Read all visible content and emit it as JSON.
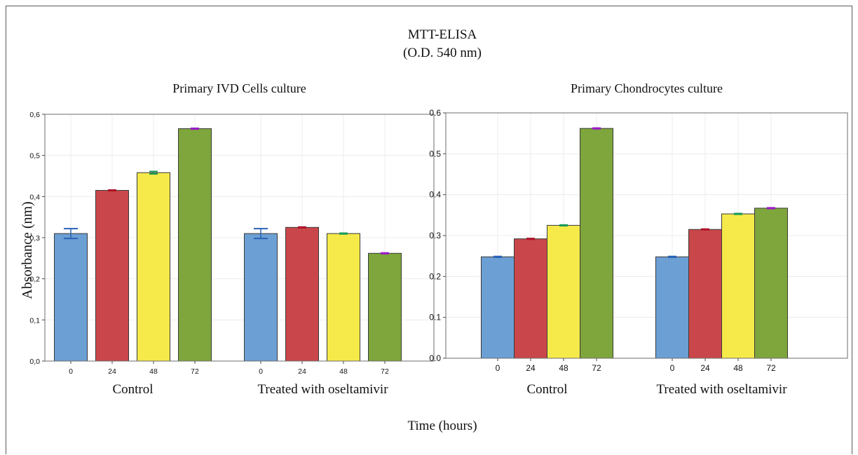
{
  "figure": {
    "title_line1": "MTT-ELISA",
    "title_line2": "(O.D. 540 nm)",
    "ylabel": "Absorbance (nm)",
    "xlabel": "Time (hours)"
  },
  "chart_data": [
    {
      "type": "bar",
      "title": "Primary IVD Cells culture",
      "ylabel": "Absorbance (nm)",
      "xlabel": "Time (hours)",
      "ylim": [
        0,
        0.6
      ],
      "yticks": [
        0.0,
        0.1,
        0.2,
        0.3,
        0.4,
        0.5,
        0.6
      ],
      "ytick_labels": [
        "0,0",
        "0,1",
        "0,2",
        "0,3",
        "0,4",
        "0,5",
        "0,6"
      ],
      "grid": true,
      "groups": [
        {
          "label": "Control",
          "categories": [
            "0",
            "24",
            "48",
            "72"
          ],
          "values": [
            0.31,
            0.415,
            0.458,
            0.565
          ],
          "errors": [
            0.012,
            0.001,
            0.003,
            0.001
          ]
        },
        {
          "label": "Treated with oseltamivir",
          "categories": [
            "0",
            "24",
            "48",
            "72"
          ],
          "values": [
            0.31,
            0.325,
            0.31,
            0.262
          ],
          "errors": [
            0.012,
            0.001,
            0.001,
            0.001
          ]
        }
      ]
    },
    {
      "type": "bar",
      "title": "Primary Chondrocytes culture",
      "xlabel": "Time (hours)",
      "ylim": [
        0,
        0.6
      ],
      "yticks": [
        0.0,
        0.1,
        0.2,
        0.3,
        0.4,
        0.5,
        0.6
      ],
      "ytick_labels": [
        "0.0",
        "0.1",
        "0.2",
        "0.3",
        "0.4",
        "0.5",
        "0.6"
      ],
      "grid": true,
      "groups": [
        {
          "label": "Control",
          "categories": [
            "0",
            "24",
            "48",
            "72"
          ],
          "values": [
            0.248,
            0.292,
            0.325,
            0.562
          ],
          "errors": [
            0.001,
            0.001,
            0.001,
            0.001
          ]
        },
        {
          "label": "Treated with oseltamivir",
          "categories": [
            "0",
            "24",
            "48",
            "72"
          ],
          "values": [
            0.248,
            0.315,
            0.353,
            0.367
          ],
          "errors": [
            0.001,
            0.001,
            0.001,
            0.001
          ]
        }
      ]
    }
  ],
  "colors": {
    "bar_fills": [
      "#6c9fd4",
      "#c9474a",
      "#f5ea4a",
      "#7ea63c"
    ],
    "error_colors": [
      "#2a62b5",
      "#b0142a",
      "#1a9a5a",
      "#9a1ac8"
    ],
    "bar_stroke": "#3a3a3a",
    "grid": "#ececec",
    "panel_border": "#6e6e6e"
  }
}
